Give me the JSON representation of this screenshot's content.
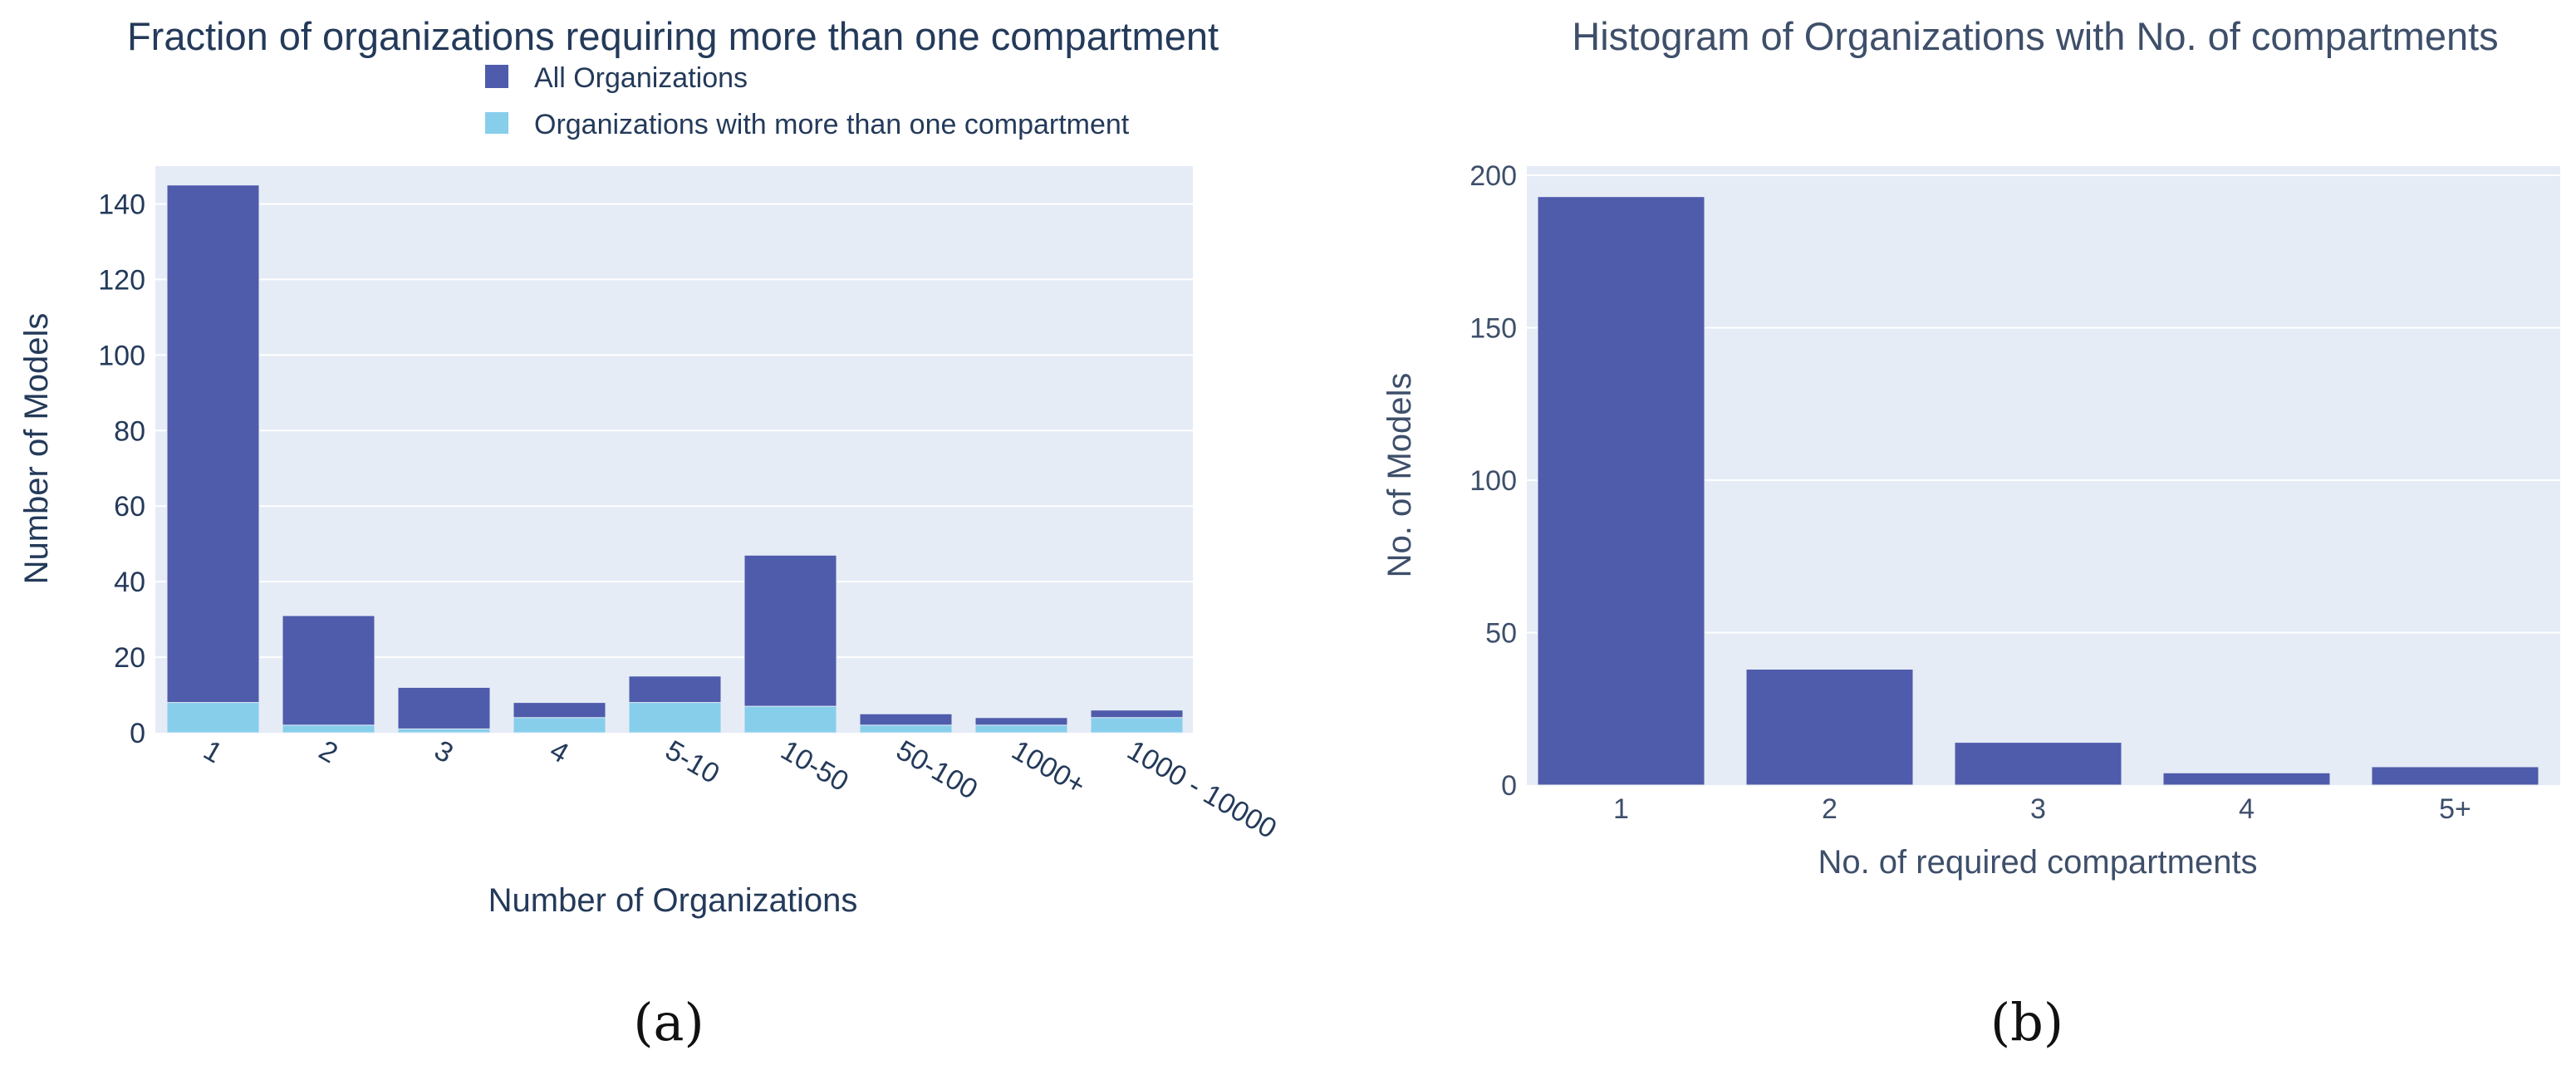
{
  "chart_data": [
    {
      "type": "bar",
      "mode": "overlay",
      "caption": "(a)",
      "title": "Fraction of organizations requiring more than one compartment",
      "xlabel": "Number of Organizations",
      "ylabel": "Number of Models",
      "categories": [
        "1",
        "2",
        "3",
        "4",
        "5-10",
        "10-50",
        "50-100",
        "1000+",
        "1000 - 10000"
      ],
      "ylim": [
        0,
        150
      ],
      "yticks": [
        0,
        20,
        40,
        60,
        80,
        100,
        120,
        140
      ],
      "legend_position": "top",
      "series": [
        {
          "name": "All Organizations",
          "values": [
            145,
            31,
            12,
            8,
            15,
            47,
            5,
            4,
            6
          ]
        },
        {
          "name": "Organizations with more than one compartment",
          "values": [
            8,
            2,
            1,
            4,
            8,
            7,
            2,
            2,
            4
          ]
        }
      ],
      "colors": [
        "#4f5bab",
        "#87ceeb"
      ],
      "plot_bg": "#e5ecf6",
      "text_color": "#243a5a"
    },
    {
      "type": "bar",
      "caption": "(b)",
      "title": "Histogram of Organizations with No. of compartments",
      "xlabel": "No. of required compartments",
      "ylabel": "No. of Models",
      "categories": [
        "1",
        "2",
        "3",
        "4",
        "5+"
      ],
      "values": [
        193,
        38,
        14,
        4,
        6
      ],
      "ylim": [
        0,
        203
      ],
      "yticks": [
        0,
        50,
        100,
        150,
        200
      ],
      "colors": [
        "#4f5bab"
      ],
      "plot_bg": "#e5ecf6",
      "text_color": "#3e4f6a"
    }
  ]
}
